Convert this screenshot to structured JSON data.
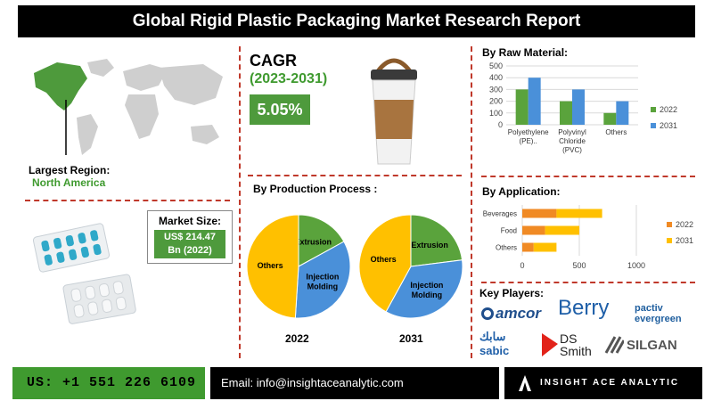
{
  "header": {
    "title": "Global Rigid Plastic Packaging Market Research Report"
  },
  "region": {
    "label": "Largest Region:",
    "value": "North America"
  },
  "cagr": {
    "title": "CAGR",
    "period": "(2023-2031)",
    "value": "5.05%"
  },
  "market_size": {
    "label": "Market Size:",
    "value_line1": "US$ 214.47",
    "value_line2": "Bn (2022)"
  },
  "sections": {
    "raw_material": "By Raw Material:",
    "production": "By Production Process :",
    "application": "By Application:",
    "key_players": "Key Players:"
  },
  "key_players": [
    "amcor",
    "Berry",
    "pactiv evergreen",
    "سابك sabic",
    "DS Smith",
    "SILGAN"
  ],
  "footer": {
    "phone": "US: +1 551 226 6109",
    "email": "Email: info@insightaceanalytic.com",
    "brand": "INSIGHT ACE ANALYTIC"
  },
  "colors": {
    "green": "#5aa33c",
    "blue": "#4a90d9",
    "orange": "#f08a24",
    "yellow": "#ffc000"
  },
  "chart_data": [
    {
      "type": "bar",
      "title": "By Raw Material:",
      "categories": [
        "Polyethylene (PE)..",
        "Polyvinyl Chloride (PVC)",
        "Others"
      ],
      "series": [
        {
          "name": "2022",
          "values": [
            300,
            200,
            100
          ],
          "color": "#5aa33c"
        },
        {
          "name": "2031",
          "values": [
            400,
            300,
            200
          ],
          "color": "#4a90d9"
        }
      ],
      "ylim": [
        0,
        500
      ],
      "yticks": [
        0,
        100,
        200,
        300,
        400,
        500
      ],
      "legend": "right"
    },
    {
      "type": "pie",
      "title": "By Production Process :",
      "year": "2022",
      "slices": [
        {
          "label": "Extrusion",
          "value": 17,
          "color": "#5aa33c"
        },
        {
          "label": "Injection Molding",
          "value": 34,
          "color": "#4a90d9"
        },
        {
          "label": "Others",
          "value": 49,
          "color": "#ffc000"
        }
      ]
    },
    {
      "type": "pie",
      "title": "By Production Process :",
      "year": "2031",
      "slices": [
        {
          "label": "Extrusion",
          "value": 23,
          "color": "#5aa33c"
        },
        {
          "label": "Injection Molding",
          "value": 35,
          "color": "#4a90d9"
        },
        {
          "label": "Others",
          "value": 42,
          "color": "#ffc000"
        }
      ]
    },
    {
      "type": "bar",
      "orientation": "horizontal",
      "stacked": true,
      "title": "By Application:",
      "categories": [
        "Beverages",
        "Food",
        "Others"
      ],
      "series": [
        {
          "name": "2022",
          "values": [
            300,
            200,
            100
          ],
          "color": "#f08a24"
        },
        {
          "name": "2031",
          "values": [
            400,
            300,
            200
          ],
          "color": "#ffc000"
        }
      ],
      "xlim": [
        0,
        1000
      ],
      "xticks": [
        0,
        500,
        1000
      ],
      "legend": "right"
    }
  ]
}
